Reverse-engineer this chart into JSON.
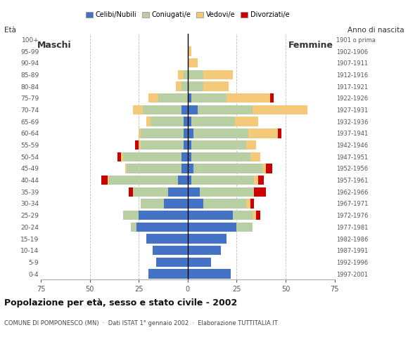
{
  "age_groups": [
    "0-4",
    "5-9",
    "10-14",
    "15-19",
    "20-24",
    "25-29",
    "30-34",
    "35-39",
    "40-44",
    "45-49",
    "50-54",
    "55-59",
    "60-64",
    "65-69",
    "70-74",
    "75-79",
    "80-84",
    "85-89",
    "90-94",
    "95-99",
    "100+"
  ],
  "birth_years": [
    "1997-2001",
    "1992-1996",
    "1987-1991",
    "1982-1986",
    "1977-1981",
    "1972-1976",
    "1967-1971",
    "1962-1966",
    "1957-1961",
    "1952-1956",
    "1947-1951",
    "1942-1946",
    "1937-1941",
    "1932-1936",
    "1927-1931",
    "1922-1926",
    "1917-1921",
    "1912-1916",
    "1907-1911",
    "1902-1906",
    "1901 o prima"
  ],
  "males": {
    "celibe": [
      20,
      16,
      18,
      21,
      26,
      25,
      12,
      10,
      5,
      3,
      3,
      2,
      2,
      2,
      3,
      0,
      0,
      0,
      0,
      0,
      0
    ],
    "coniugato": [
      0,
      0,
      0,
      0,
      3,
      8,
      12,
      18,
      35,
      28,
      30,
      22,
      22,
      17,
      20,
      15,
      3,
      2,
      0,
      0,
      0
    ],
    "vedovo": [
      0,
      0,
      0,
      0,
      0,
      0,
      0,
      0,
      1,
      1,
      1,
      1,
      1,
      2,
      5,
      5,
      3,
      3,
      0,
      0,
      0
    ],
    "divorziato": [
      0,
      0,
      0,
      0,
      0,
      0,
      0,
      2,
      3,
      0,
      2,
      2,
      0,
      0,
      0,
      0,
      0,
      0,
      0,
      0,
      0
    ]
  },
  "females": {
    "celibe": [
      22,
      12,
      17,
      20,
      25,
      23,
      8,
      6,
      2,
      3,
      2,
      2,
      3,
      2,
      5,
      2,
      0,
      0,
      0,
      0,
      0
    ],
    "coniugato": [
      0,
      0,
      0,
      0,
      8,
      10,
      22,
      28,
      32,
      35,
      30,
      28,
      28,
      22,
      28,
      18,
      8,
      8,
      0,
      0,
      0
    ],
    "vedovo": [
      0,
      0,
      0,
      0,
      0,
      2,
      2,
      0,
      2,
      2,
      5,
      5,
      15,
      12,
      28,
      22,
      13,
      15,
      5,
      2,
      0
    ],
    "divorziato": [
      0,
      0,
      0,
      0,
      0,
      2,
      2,
      6,
      3,
      3,
      0,
      0,
      2,
      0,
      0,
      2,
      0,
      0,
      0,
      0,
      0
    ]
  },
  "colors": {
    "celibe": "#4472c4",
    "coniugato": "#b8cfa4",
    "vedovo": "#f5c97a",
    "divorziato": "#cc0000"
  },
  "xlim": 75,
  "title": "Popolazione per età, sesso e stato civile - 2002",
  "subtitle": "COMUNE DI POMPONESCO (MN)  ·  Dati ISTAT 1° gennaio 2002  ·  Elaborazione TUTTITALIA.IT",
  "xlabel_left": "Maschi",
  "xlabel_right": "Femmine",
  "ylabel_age": "Età",
  "ylabel_birth": "Anno di nascita",
  "legend_labels": [
    "Celibi/Nubili",
    "Coniugati/e",
    "Vedovi/e",
    "Divorziati/e"
  ],
  "background_color": "#ffffff",
  "grid_color": "#aaaaaa",
  "tick_color": "#555555"
}
